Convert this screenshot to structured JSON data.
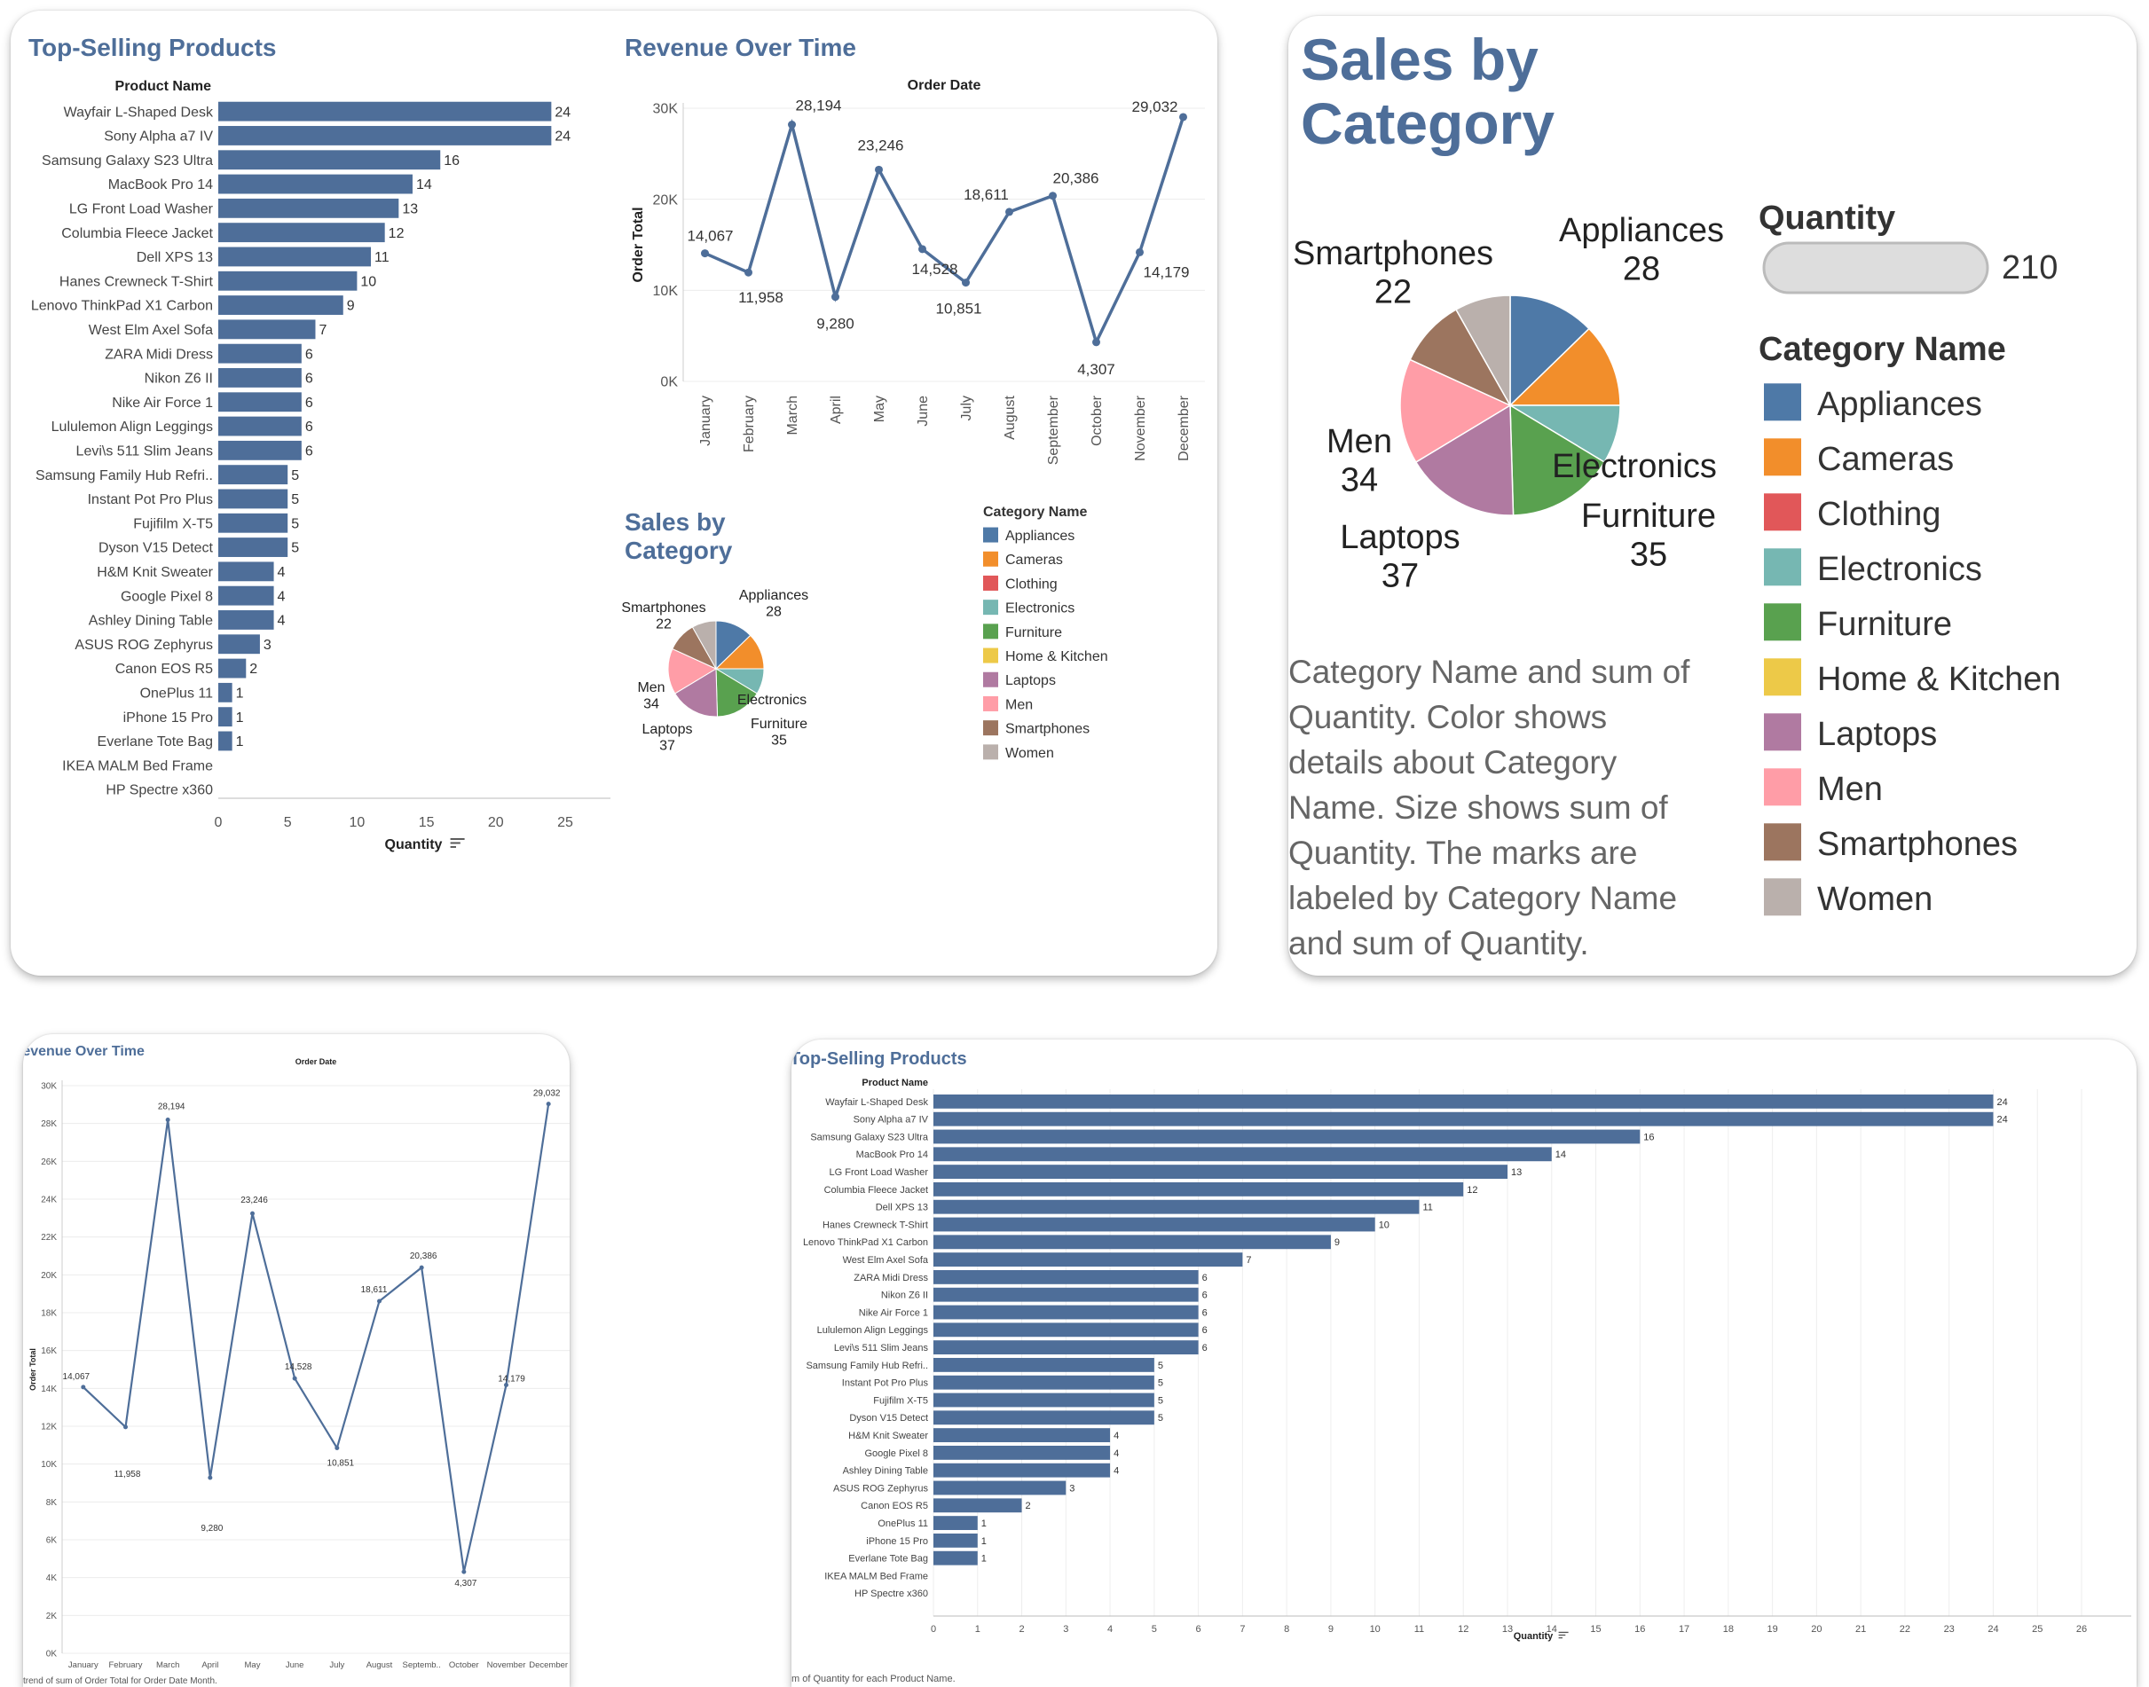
{
  "top_selling": {
    "title": "Top-Selling Products",
    "column_header": "Product Name",
    "x_label": "Quantity",
    "caption": "m of Quantity for each Product Name."
  },
  "revenue": {
    "title": "Revenue Over Time",
    "title_cropped": "‹evenue Over Time",
    "x_header": "Order Date",
    "y_label": "Order Total",
    "caption": "trend of sum of Order Total for Order Date Month."
  },
  "sales_category": {
    "title_line1": "Sales by",
    "title_line2": "Category",
    "legend_title": "Category Name",
    "size_legend_title": "Quantity",
    "size_legend_value": "210",
    "description": [
      "Category Name and sum of",
      "Quantity.  Color shows",
      "details about Category",
      "Name.  Size shows sum of",
      "Quantity.  The marks are",
      "labeled by Category Name",
      "and sum of Quantity."
    ]
  },
  "chart_data": [
    {
      "id": "top-selling-products",
      "type": "bar",
      "orientation": "horizontal",
      "title": "Top-Selling Products",
      "xlabel": "Quantity",
      "ylabel": "Product Name",
      "xlim": [
        0,
        26
      ],
      "color": "#4e6e99",
      "categories": [
        "Wayfair L-Shaped Desk",
        "Sony Alpha a7 IV",
        "Samsung Galaxy S23 Ultra",
        "MacBook Pro 14",
        "LG Front Load Washer",
        "Columbia Fleece Jacket",
        "Dell XPS 13",
        "Hanes Crewneck T-Shirt",
        "Lenovo ThinkPad X1 Carbon",
        "West Elm Axel Sofa",
        "ZARA Midi Dress",
        "Nikon Z6 II",
        "Nike Air Force 1",
        "Lululemon Align Leggings",
        "Levi\\s 511 Slim Jeans",
        "Samsung Family Hub Refri..",
        "Instant Pot Pro Plus",
        "Fujifilm X-T5",
        "Dyson V15 Detect",
        "H&M Knit Sweater",
        "Google Pixel 8",
        "Ashley Dining Table",
        "ASUS ROG Zephyrus",
        "Canon EOS R5",
        "OnePlus 11",
        "iPhone 15 Pro",
        "Everlane Tote Bag",
        "IKEA MALM Bed Frame",
        "HP Spectre x360"
      ],
      "values": [
        24,
        24,
        16,
        14,
        13,
        12,
        11,
        10,
        9,
        7,
        6,
        6,
        6,
        6,
        6,
        5,
        5,
        5,
        5,
        4,
        4,
        4,
        3,
        2,
        1,
        1,
        1,
        null,
        null
      ],
      "ticks_small": [
        0,
        5,
        10,
        15,
        20,
        25
      ],
      "ticks_large": [
        0,
        1,
        2,
        3,
        4,
        5,
        6,
        7,
        8,
        9,
        10,
        11,
        12,
        13,
        14,
        15,
        16,
        17,
        18,
        19,
        20,
        21,
        22,
        23,
        24,
        25,
        26
      ]
    },
    {
      "id": "revenue-over-time",
      "type": "line",
      "title": "Revenue Over Time",
      "xlabel": "Order Date",
      "ylabel": "Order Total",
      "color": "#4e6e99",
      "x": [
        "January",
        "February",
        "March",
        "April",
        "May",
        "June",
        "July",
        "August",
        "September",
        "October",
        "November",
        "December"
      ],
      "x_short": [
        "January",
        "February",
        "March",
        "April",
        "May",
        "June",
        "July",
        "August",
        "Septemb..",
        "October",
        "November",
        "December"
      ],
      "y": [
        14067,
        11958,
        28194,
        9280,
        23246,
        14528,
        10851,
        18611,
        20386,
        4307,
        14179,
        29032
      ],
      "labels": [
        "14,067",
        "11,958",
        "28,194",
        "9,280",
        "23,246",
        "14,528",
        "10,851",
        "18,611",
        "20,386",
        "4,307",
        "14,179",
        "29,032"
      ],
      "ylim_small": [
        0,
        30000
      ],
      "yticks_small": [
        "0K",
        "10K",
        "20K",
        "30K"
      ],
      "ylim_large": [
        0,
        30000
      ],
      "yticks_large": [
        "0K",
        "2K",
        "4K",
        "6K",
        "8K",
        "10K",
        "12K",
        "14K",
        "16K",
        "18K",
        "20K",
        "22K",
        "24K",
        "26K",
        "28K",
        "30K"
      ]
    },
    {
      "id": "sales-by-category",
      "type": "pie",
      "title": "Sales by Category",
      "slices": [
        {
          "name": "Appliances",
          "value": 28,
          "color": "#4e79a7"
        },
        {
          "name": "Cameras",
          "value": 27,
          "color": "#f28e2b"
        },
        {
          "name": "Electronics",
          "value": 19,
          "color": "#76b7b2"
        },
        {
          "name": "Furniture",
          "value": 35,
          "color": "#59a14f"
        },
        {
          "name": "Laptops",
          "value": 37,
          "color": "#b07aa1"
        },
        {
          "name": "Men",
          "value": 34,
          "color": "#ff9da7"
        },
        {
          "name": "Smartphones",
          "value": 22,
          "color": "#9c755f"
        },
        {
          "name": "Women",
          "value": 18,
          "color": "#bab0ac"
        }
      ],
      "labels": [
        {
          "name": "Appliances",
          "value": "28"
        },
        {
          "name": "Smartphones",
          "value": "22"
        },
        {
          "name": "Men",
          "value": "34"
        },
        {
          "name": "Laptops",
          "value": "37"
        },
        {
          "name": "Electronics",
          "value": ""
        },
        {
          "name": "Furniture",
          "value": "35"
        }
      ],
      "legend": [
        {
          "name": "Appliances",
          "color": "#4e79a7"
        },
        {
          "name": "Cameras",
          "color": "#f28e2b"
        },
        {
          "name": "Clothing",
          "color": "#e15759"
        },
        {
          "name": "Electronics",
          "color": "#76b7b2"
        },
        {
          "name": "Furniture",
          "color": "#59a14f"
        },
        {
          "name": "Home & Kitchen",
          "color": "#edc948"
        },
        {
          "name": "Laptops",
          "color": "#b07aa1"
        },
        {
          "name": "Men",
          "color": "#ff9da7"
        },
        {
          "name": "Smartphones",
          "color": "#9c755f"
        },
        {
          "name": "Women",
          "color": "#bab0ac"
        }
      ]
    }
  ]
}
